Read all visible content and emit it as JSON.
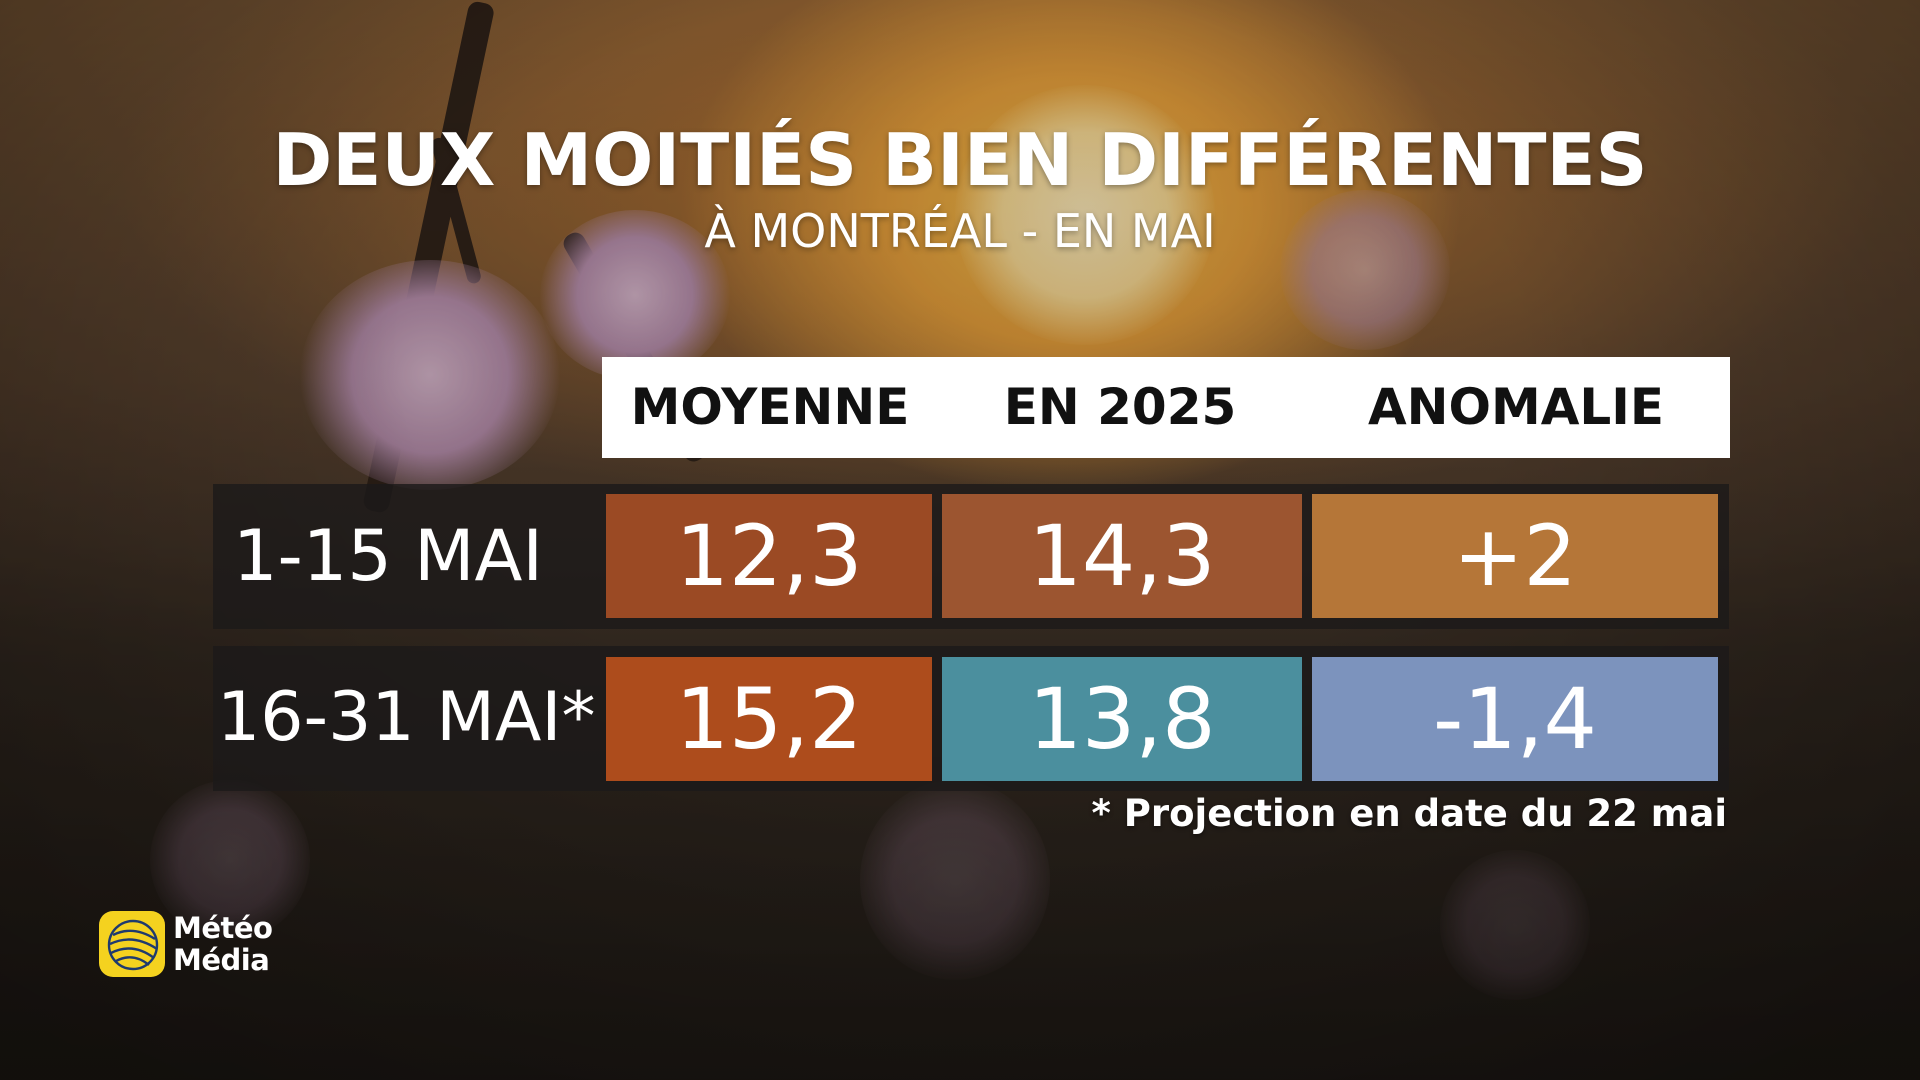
{
  "title": "DEUX MOITIÉS BIEN DIFFÉRENTES",
  "subtitle": "À MONTRÉAL - EN MAI",
  "table": {
    "headers": [
      "MOYENNE",
      "EN 2025",
      "ANOMALIE"
    ],
    "rows": [
      {
        "label": "1-15 MAI",
        "values": [
          "12,3",
          "14,3",
          "+2"
        ],
        "colors": [
          "#9b4a24",
          "#9c5530",
          "#b57638"
        ]
      },
      {
        "label": "16-31 MAI*",
        "values": [
          "15,2",
          "13,8",
          "-1,4"
        ],
        "colors": [
          "#ad4c1c",
          "#4b8f9e",
          "#7c93bd"
        ]
      }
    ]
  },
  "footnote": "* Projection en date du 22 mai",
  "logo": {
    "line1": "Météo",
    "line2": "Média",
    "icon": "meteomedia-globe-icon",
    "mark_color": "#f4d21f"
  }
}
